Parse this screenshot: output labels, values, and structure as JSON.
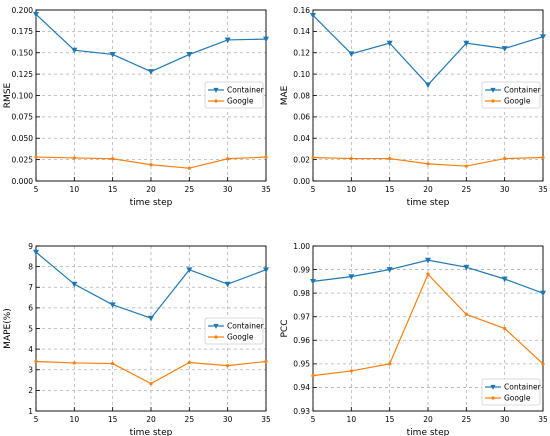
{
  "chart_data": [
    {
      "type": "line",
      "x": [
        5,
        10,
        15,
        20,
        25,
        30,
        35
      ],
      "xlabel": "time step",
      "ylabel": "RMSE",
      "xlim": [
        5,
        35
      ],
      "ylim": [
        0,
        0.2
      ],
      "xticks": [
        "5",
        "10",
        "15",
        "20",
        "25",
        "30",
        "35"
      ],
      "yticks": [
        "0.000",
        "0.025",
        "0.050",
        "0.075",
        "0.100",
        "0.125",
        "0.150",
        "0.175",
        "0.200"
      ],
      "grid": true,
      "legend_position": "center-right",
      "series": [
        {
          "name": "Container",
          "color": "#1f77b4",
          "marker": "triangle-down",
          "values": [
            0.195,
            0.153,
            0.148,
            0.128,
            0.148,
            0.165,
            0.166
          ]
        },
        {
          "name": "Google",
          "color": "#ff7f0e",
          "marker": "dot",
          "values": [
            0.028,
            0.027,
            0.026,
            0.019,
            0.015,
            0.026,
            0.028
          ]
        }
      ]
    },
    {
      "type": "line",
      "x": [
        5,
        10,
        15,
        20,
        25,
        30,
        35
      ],
      "xlabel": "time step",
      "ylabel": "MAE",
      "xlim": [
        5,
        35
      ],
      "ylim": [
        0,
        0.16
      ],
      "xticks": [
        "5",
        "10",
        "15",
        "20",
        "25",
        "30",
        "35"
      ],
      "yticks": [
        "0.00",
        "0.02",
        "0.04",
        "0.06",
        "0.08",
        "0.10",
        "0.12",
        "0.14",
        "0.16"
      ],
      "grid": true,
      "legend_position": "center-right",
      "series": [
        {
          "name": "Container",
          "color": "#1f77b4",
          "marker": "triangle-down",
          "values": [
            0.155,
            0.119,
            0.129,
            0.09,
            0.129,
            0.124,
            0.135
          ]
        },
        {
          "name": "Google",
          "color": "#ff7f0e",
          "marker": "dot",
          "values": [
            0.022,
            0.021,
            0.021,
            0.016,
            0.014,
            0.021,
            0.022
          ]
        }
      ]
    },
    {
      "type": "line",
      "x": [
        5,
        10,
        15,
        20,
        25,
        30,
        35
      ],
      "xlabel": "time step",
      "ylabel": "MAPE(%)",
      "xlim": [
        5,
        35
      ],
      "ylim": [
        1,
        9
      ],
      "xticks": [
        "5",
        "10",
        "15",
        "20",
        "25",
        "30",
        "35"
      ],
      "yticks": [
        "1",
        "2",
        "3",
        "4",
        "5",
        "6",
        "7",
        "8",
        "9"
      ],
      "grid": true,
      "legend_position": "center-right",
      "series": [
        {
          "name": "Container",
          "color": "#1f77b4",
          "marker": "triangle-down",
          "values": [
            8.7,
            7.15,
            6.15,
            5.5,
            7.85,
            7.15,
            7.85
          ]
        },
        {
          "name": "Google",
          "color": "#ff7f0e",
          "marker": "dot",
          "values": [
            3.4,
            3.33,
            3.3,
            2.33,
            3.35,
            3.2,
            3.4
          ]
        }
      ]
    },
    {
      "type": "line",
      "x": [
        5,
        10,
        15,
        20,
        25,
        30,
        35
      ],
      "xlabel": "time step",
      "ylabel": "PCC",
      "xlim": [
        5,
        35
      ],
      "ylim": [
        0.93,
        1.0
      ],
      "xticks": [
        "5",
        "10",
        "15",
        "20",
        "25",
        "30",
        "35"
      ],
      "yticks": [
        "0.93",
        "0.94",
        "0.95",
        "0.96",
        "0.97",
        "0.98",
        "0.99",
        "1.00"
      ],
      "grid": true,
      "legend_position": "bottom-right",
      "series": [
        {
          "name": "Container",
          "color": "#1f77b4",
          "marker": "triangle-down",
          "values": [
            0.985,
            0.987,
            0.99,
            0.994,
            0.991,
            0.986,
            0.98
          ]
        },
        {
          "name": "Google",
          "color": "#ff7f0e",
          "marker": "dot",
          "values": [
            0.945,
            0.947,
            0.95,
            0.988,
            0.971,
            0.965,
            0.95
          ]
        }
      ]
    }
  ]
}
